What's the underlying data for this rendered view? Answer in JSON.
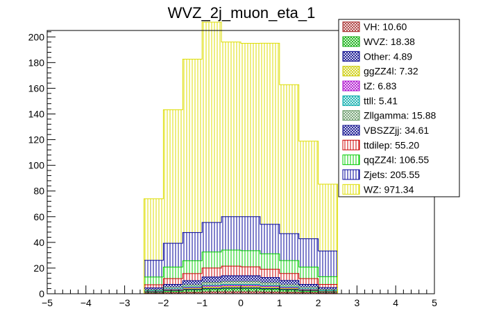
{
  "chart_data": {
    "type": "bar",
    "stacked": true,
    "histogram": true,
    "title": "WVZ_2j_muon_eta_1",
    "xlim": [
      -5,
      5
    ],
    "ylim": [
      0,
      205
    ],
    "x_ticks": [
      -5,
      -4,
      -3,
      -2,
      -1,
      0,
      1,
      2,
      3,
      4,
      5
    ],
    "y_ticks": [
      0,
      20,
      40,
      60,
      80,
      100,
      120,
      140,
      160,
      180,
      200
    ],
    "bin_edges": [
      -2.5,
      -2.0,
      -1.5,
      -1.0,
      -0.5,
      0.0,
      0.5,
      1.0,
      1.5,
      2.0,
      2.5
    ],
    "legend_position": "top-right",
    "series": [
      {
        "name": "VH",
        "label": "VH: 10.60",
        "color": "#a52a2a",
        "pattern": "cross",
        "values": [
          0.5,
          0.8,
          1.1,
          1.4,
          1.5,
          1.5,
          1.3,
          1.1,
          0.8,
          0.6
        ]
      },
      {
        "name": "WVZ",
        "label": "WVZ: 18.38",
        "color": "#00aa00",
        "pattern": "cross",
        "values": [
          0.8,
          1.3,
          1.8,
          2.2,
          2.4,
          2.4,
          2.2,
          1.8,
          1.3,
          0.8
        ]
      },
      {
        "name": "Other",
        "label": "Other: 4.89",
        "color": "#000088",
        "pattern": "cross",
        "values": [
          0.2,
          0.3,
          0.5,
          0.6,
          0.7,
          0.7,
          0.6,
          0.5,
          0.3,
          0.2
        ]
      },
      {
        "name": "ggZZ4l",
        "label": "ggZZ4l: 7.32",
        "color": "#cccc00",
        "pattern": "cross",
        "values": [
          0.3,
          0.5,
          0.7,
          0.9,
          1.0,
          1.0,
          0.9,
          0.7,
          0.5,
          0.3
        ]
      },
      {
        "name": "tZ",
        "label": "tZ: 6.83",
        "color": "#aa00cc",
        "pattern": "cross",
        "values": [
          0.3,
          0.5,
          0.7,
          0.9,
          0.9,
          0.9,
          0.8,
          0.7,
          0.5,
          0.3
        ]
      },
      {
        "name": "ttll",
        "label": "ttll: 5.41",
        "color": "#00aaaa",
        "pattern": "cross",
        "values": [
          0.2,
          0.4,
          0.5,
          0.7,
          0.8,
          0.8,
          0.7,
          0.5,
          0.4,
          0.2
        ]
      },
      {
        "name": "Zllgamma",
        "label": "Zllgamma: 15.88",
        "color": "#669966",
        "pattern": "cross",
        "values": [
          0.7,
          1.1,
          1.5,
          2.0,
          2.1,
          2.1,
          1.9,
          1.6,
          1.1,
          0.8
        ]
      },
      {
        "name": "VBSZZjj",
        "label": "VBSZZjj: 34.61",
        "color": "#000088",
        "pattern": "cross",
        "values": [
          1.5,
          2.4,
          3.4,
          4.3,
          4.6,
          4.6,
          4.2,
          3.4,
          2.4,
          1.6
        ]
      },
      {
        "name": "ttdilep",
        "label": "ttdilep: 55.20",
        "color": "#cc0000",
        "pattern": "vline",
        "values": [
          2.5,
          4.5,
          5.5,
          7.0,
          7.5,
          7.0,
          6.5,
          5.5,
          4.5,
          2.5
        ]
      },
      {
        "name": "qqZZ4l",
        "label": "qqZZ4l: 106.55",
        "color": "#00cc00",
        "pattern": "vline",
        "values": [
          6.0,
          9.0,
          10.0,
          12.5,
          12.5,
          12.5,
          12.0,
          10.0,
          9.0,
          6.0
        ]
      },
      {
        "name": "Zjets",
        "label": "Zjets: 205.55",
        "color": "#000099",
        "pattern": "vline",
        "values": [
          13.0,
          18.5,
          22.0,
          23.0,
          26.0,
          26.5,
          23.0,
          21.0,
          22.0,
          20.0
        ]
      },
      {
        "name": "WZ",
        "label": "WZ: 971.34",
        "color": "#dddd00",
        "pattern": "vline",
        "values": [
          48.0,
          104.0,
          135.0,
          156.0,
          136.0,
          135.0,
          141.0,
          116.0,
          76.0,
          52.0
        ]
      }
    ]
  }
}
